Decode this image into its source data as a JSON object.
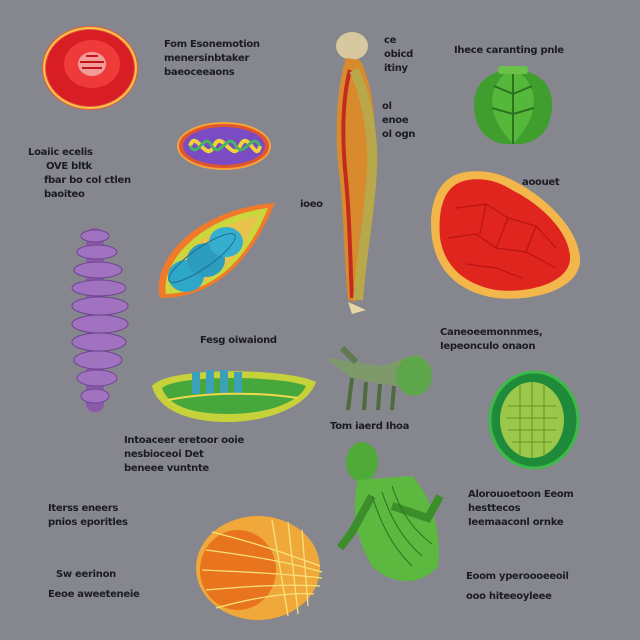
{
  "page": {
    "background": "#86878e",
    "text_color": "#1b1b22"
  },
  "labels": {
    "l1": [
      "Fom Esonemotion",
      "menersinbtaker",
      "baeoceeaons"
    ],
    "l2": [
      "Ihece caranting pnle"
    ],
    "l3": [
      "ce",
      "obicd",
      "itiny"
    ],
    "l4": [
      "ol",
      "enoe",
      "ol ogn"
    ],
    "l5": [
      "Loaiic ecelis",
      "OVE bltk",
      "fbar bo col ctlen",
      "baoiteo"
    ],
    "l6": [
      "aoouet"
    ],
    "l7": [
      "ioeo"
    ],
    "l8": [
      "Fesg oiwaiond"
    ],
    "l9": [
      "Caneoeemonnmes,",
      "Iepeonculo onaon"
    ],
    "l10": [
      "Tom iaerd Ihoa"
    ],
    "l11": [
      "Intoaceer eretoor ooie",
      "nesbioceoi Det",
      "beneee vuntnte"
    ],
    "l12": [
      "Iterss eneers",
      "pnios eporitles"
    ],
    "l13": [
      "Alorouoetoon Eeom",
      "hesttecos",
      "Ieemaaconl ornke"
    ],
    "l14": [
      "Sw eerinon",
      "Eeoe aweeteneie"
    ],
    "l15": [
      "Eoom yperoooeeoil",
      "ooo hiteeoyleee"
    ]
  },
  "icons": [
    "red-cell-icon",
    "mitochondrion-icon",
    "seed-pod-icon",
    "spine-icon",
    "human-body-icon",
    "green-leaf-organ-icon",
    "red-tissue-icon",
    "boat-organelle-icon",
    "plant-structure-icon",
    "green-seed-icon",
    "green-figure-icon",
    "orange-bulb-icon"
  ]
}
